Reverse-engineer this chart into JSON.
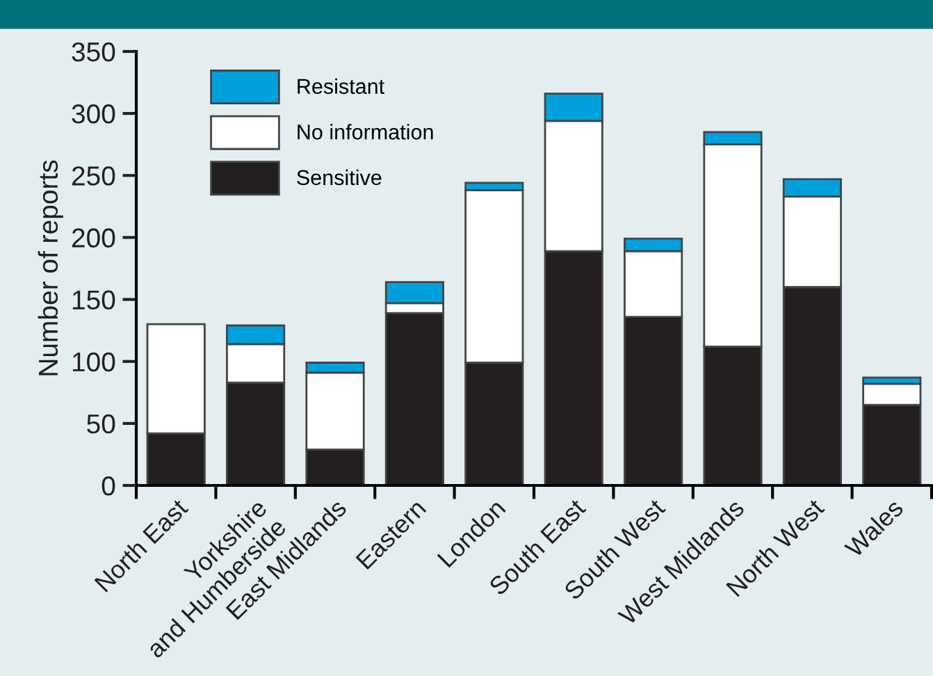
{
  "chart_data": {
    "type": "bar",
    "stacked": true,
    "ylabel": "Number of reports",
    "categories": [
      "North East",
      "Yorkshire\nand Humberside",
      "East Midlands",
      "Eastern",
      "London",
      "South East",
      "South West",
      "West Midlands",
      "North West",
      "Wales"
    ],
    "series": [
      {
        "name": "Sensitive",
        "color": "#231f20",
        "values": [
          42,
          83,
          29,
          139,
          99,
          189,
          136,
          112,
          160,
          65
        ]
      },
      {
        "name": "No information",
        "color": "#ffffff",
        "values": [
          88,
          31,
          62,
          8,
          139,
          105,
          53,
          163,
          73,
          17
        ]
      },
      {
        "name": "Resistant",
        "color": "#00a0dc",
        "values": [
          null,
          15,
          8,
          17,
          6,
          22,
          10,
          10,
          14,
          5
        ]
      }
    ],
    "ylim": [
      0,
      350
    ],
    "yticks": [
      0,
      50,
      100,
      150,
      200,
      250,
      300,
      350
    ],
    "grid": false,
    "legend": "top left"
  }
}
